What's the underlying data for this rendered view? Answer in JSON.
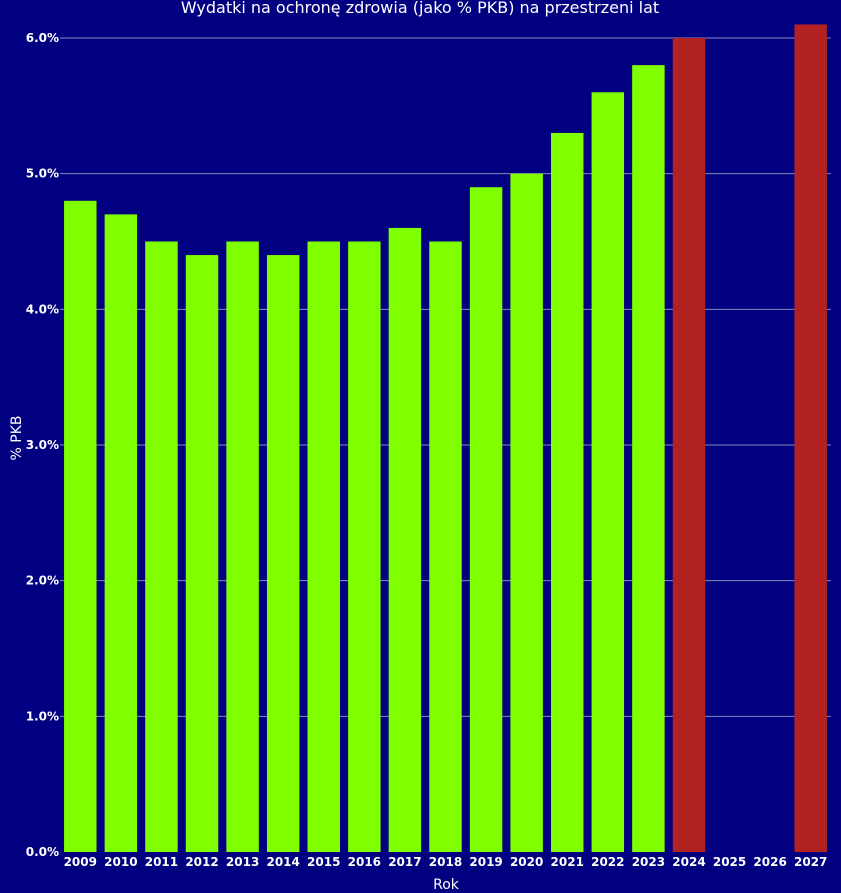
{
  "chart_data": {
    "type": "bar",
    "title": "Wydatki na ochronę zdrowia (jako % PKB) na przestrzeni lat",
    "xlabel": "Rok",
    "ylabel": "% PKB",
    "categories": [
      "2009",
      "2010",
      "2011",
      "2012",
      "2013",
      "2014",
      "2015",
      "2016",
      "2017",
      "2018",
      "2019",
      "2020",
      "2021",
      "2022",
      "2023",
      "2024",
      "2025",
      "2026",
      "2027"
    ],
    "values": [
      4.8,
      4.7,
      4.5,
      4.4,
      4.5,
      4.4,
      4.5,
      4.5,
      4.6,
      4.5,
      4.9,
      5.0,
      5.3,
      5.6,
      5.8,
      6.0,
      null,
      null,
      6.1
    ],
    "bar_colors": [
      "#7fff00",
      "#7fff00",
      "#7fff00",
      "#7fff00",
      "#7fff00",
      "#7fff00",
      "#7fff00",
      "#7fff00",
      "#7fff00",
      "#7fff00",
      "#7fff00",
      "#7fff00",
      "#7fff00",
      "#7fff00",
      "#7fff00",
      "#b22222",
      "#b22222",
      "#b22222",
      "#b22222"
    ],
    "ylim": [
      0,
      6.0
    ],
    "yticks": [
      "0.0%",
      "1.0%",
      "2.0%",
      "3.0%",
      "4.0%",
      "5.0%",
      "6.0%"
    ],
    "ytick_values": [
      0,
      1,
      2,
      3,
      4,
      5,
      6
    ],
    "grid": true,
    "legend": false
  },
  "colors": {
    "background": "#000080",
    "gridline": "#8a8ab8",
    "text": "#ffffff"
  }
}
